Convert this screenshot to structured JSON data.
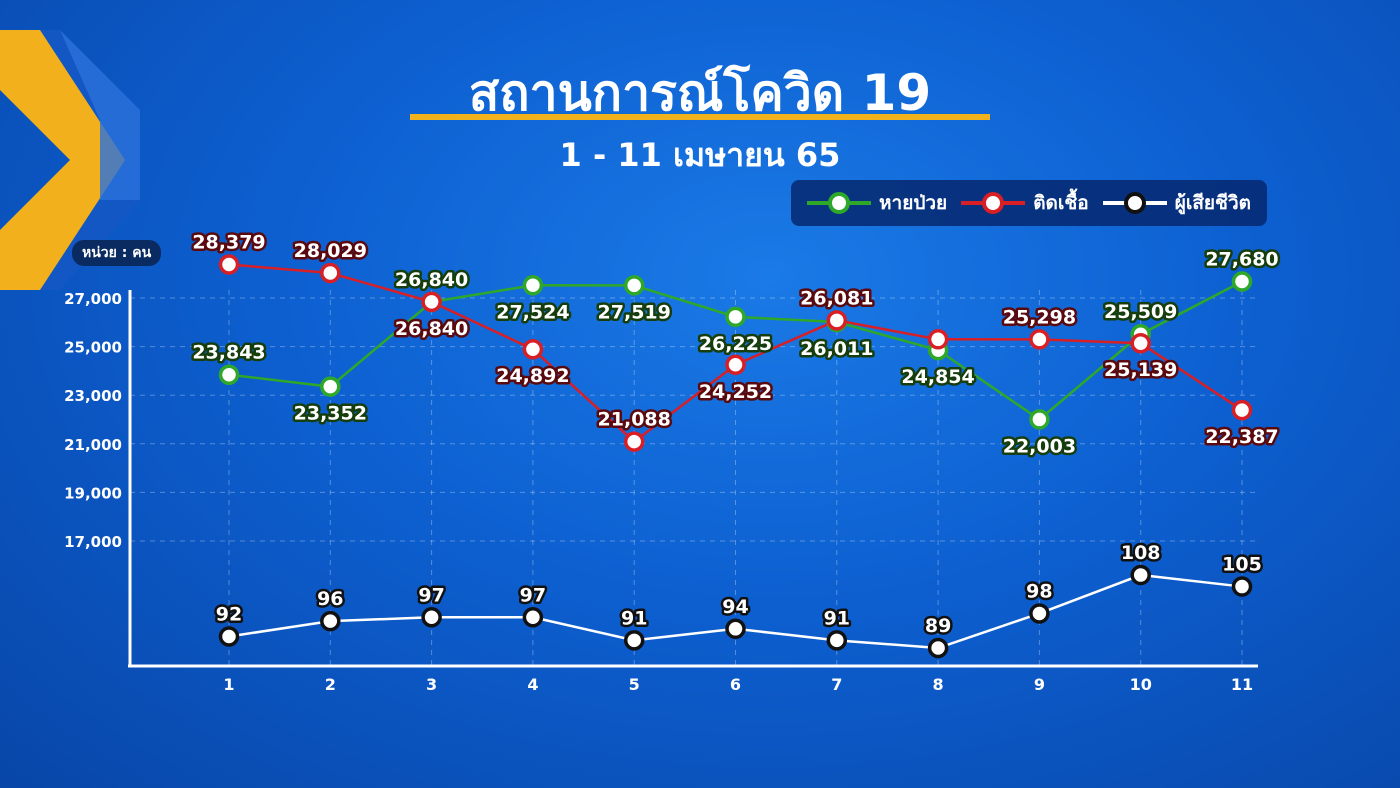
{
  "header": {
    "title": "สถานการณ์โควิด 19",
    "subtitle": "1 - 11 เมษายน 65"
  },
  "unit_label": "หน่วย : คน",
  "chart_data": {
    "type": "line",
    "title": "สถานการณ์โควิด 19",
    "subtitle": "1 - 11 เมษายน 65",
    "x": [
      1,
      2,
      3,
      4,
      5,
      6,
      7,
      8,
      9,
      10,
      11
    ],
    "yticks": [
      "27,000",
      "25,000",
      "23,000",
      "21,000",
      "19,000",
      "17,000"
    ],
    "ylim": [
      15000,
      28500
    ],
    "grid": true,
    "legend_position": "top-right",
    "series": [
      {
        "name": "หายป่วย",
        "color": "#2fa82a",
        "values": [
          23843,
          23352,
          26840,
          27524,
          27519,
          26225,
          26011,
          24854,
          22003,
          25509,
          27680
        ],
        "labels": [
          "23,843",
          "23,352",
          "26,840",
          "27,524",
          "27,519",
          "26,225",
          "26,011",
          "24,854",
          "22,003",
          "25,509",
          "27,680"
        ]
      },
      {
        "name": "ติดเชื้อ",
        "color": "#d81f26",
        "values": [
          28379,
          28029,
          26840,
          24892,
          21088,
          24252,
          26081,
          25300,
          25298,
          25139,
          22387
        ],
        "labels": [
          "28,379",
          "28,029",
          "26,840",
          "24,892",
          "21,088",
          "24,252",
          "26,081",
          "",
          "25,298",
          "25,139",
          "22,387"
        ]
      },
      {
        "name": "ผู้เสียชีวิต",
        "color": "#ffffff",
        "values": [
          92,
          96,
          97,
          97,
          91,
          94,
          91,
          89,
          98,
          108,
          105
        ],
        "labels": [
          "92",
          "96",
          "97",
          "97",
          "91",
          "94",
          "91",
          "89",
          "98",
          "108",
          "105"
        ]
      }
    ]
  }
}
